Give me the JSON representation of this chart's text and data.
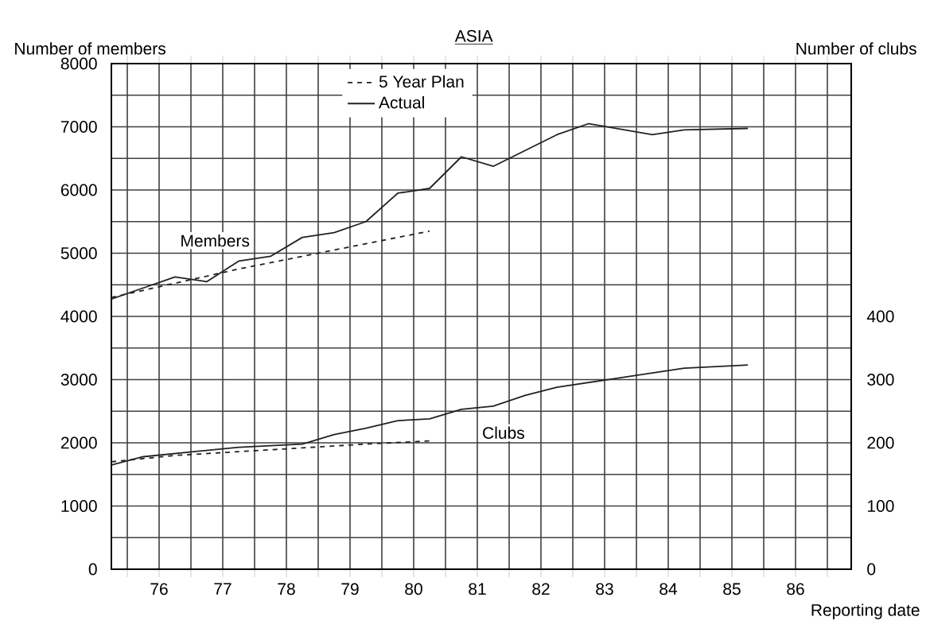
{
  "chart_data": {
    "type": "line",
    "title": "ASIA",
    "ylabel": "Number of members",
    "y2label": "Number of clubs",
    "xlabel": "Reporting date",
    "xlim": [
      75.75,
      87.375
    ],
    "xticks": [
      {
        "value": 76,
        "label": null
      },
      {
        "value": 76.5,
        "label": "76"
      },
      {
        "value": 77,
        "label": null
      },
      {
        "value": 77.5,
        "label": "77"
      },
      {
        "value": 78,
        "label": null
      },
      {
        "value": 78.5,
        "label": "78"
      },
      {
        "value": 79,
        "label": null
      },
      {
        "value": 79.5,
        "label": "79"
      },
      {
        "value": 80,
        "label": null
      },
      {
        "value": 80.5,
        "label": "80"
      },
      {
        "value": 81,
        "label": null
      },
      {
        "value": 81.5,
        "label": "81"
      },
      {
        "value": 82,
        "label": null
      },
      {
        "value": 82.5,
        "label": "82"
      },
      {
        "value": 83,
        "label": null
      },
      {
        "value": 83.5,
        "label": "83"
      },
      {
        "value": 84,
        "label": null
      },
      {
        "value": 84.5,
        "label": "84"
      },
      {
        "value": 85,
        "label": null
      },
      {
        "value": 85.5,
        "label": "85"
      },
      {
        "value": 86,
        "label": null
      },
      {
        "value": 86.5,
        "label": "86"
      },
      {
        "value": 87,
        "label": null
      }
    ],
    "ylim": [
      0,
      8000
    ],
    "yticks": [
      0,
      {
        "value": 500,
        "label": null
      },
      1000,
      {
        "value": 1500,
        "label": null
      },
      2000,
      {
        "value": 2500,
        "label": null
      },
      3000,
      {
        "value": 3500,
        "label": null
      },
      4000,
      {
        "value": 4500,
        "label": null
      },
      5000,
      {
        "value": 5500,
        "label": null
      },
      6000,
      {
        "value": 6500,
        "label": null
      },
      7000,
      {
        "value": 7500,
        "label": null
      },
      8000
    ],
    "y2lim": [
      0,
      800
    ],
    "y2ticks": [
      0,
      100,
      200,
      300,
      400
    ],
    "grid": true,
    "legend": "top",
    "series": [
      {
        "name": "5 Year Plan",
        "color": "#222222",
        "line_style": "dashed",
        "x": [
          75.75,
          76.75,
          77.75,
          78.75,
          79.75,
          80.75
        ],
        "values": [
          4300,
          4525,
          4750,
          4950,
          5150,
          5350
        ]
      },
      {
        "name": "Actual",
        "color": "#222222",
        "line_style": "solid",
        "x": [
          75.75,
          76.25,
          76.75,
          77.25,
          77.75,
          78.25,
          78.75,
          79.25,
          79.75,
          80.25,
          80.75,
          81.25,
          81.75,
          82.25,
          82.75,
          83.25,
          84.25,
          84.75,
          85.75
        ],
        "values": [
          4275,
          4450,
          4625,
          4550,
          4875,
          4950,
          5250,
          5325,
          5500,
          5950,
          6025,
          6525,
          6375,
          6625,
          6875,
          7050,
          6875,
          6950,
          6975
        ]
      },
      {
        "color": "#222222",
        "line_style": "dashed",
        "axis": "y2",
        "x": [
          75.75,
          76.75,
          77.75,
          78.75,
          79.75,
          80.75
        ],
        "values": [
          170,
          180,
          186,
          192,
          198,
          203
        ]
      },
      {
        "color": "#222222",
        "line_style": "solid",
        "axis": "y2",
        "x": [
          75.75,
          76.25,
          76.75,
          77.75,
          78.75,
          79.25,
          79.75,
          80.25,
          80.75,
          81.25,
          81.75,
          82.25,
          82.75,
          83.75,
          84.75,
          85.75
        ],
        "values": [
          165,
          178,
          183,
          193,
          198,
          213,
          223,
          235,
          238,
          253,
          258,
          275,
          288,
          303,
          318,
          323
        ]
      }
    ],
    "annotations": [
      "Members",
      "Clubs"
    ]
  }
}
